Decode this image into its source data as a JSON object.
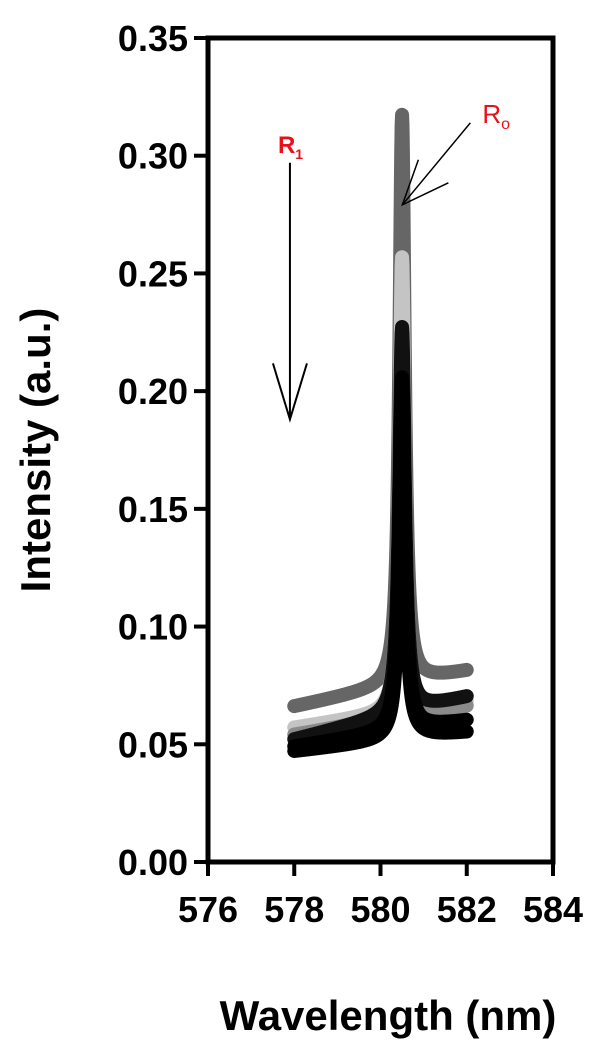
{
  "chart_data": {
    "type": "line",
    "title": "",
    "xlabel": "Wavelength (nm)",
    "ylabel": "Intensity (a.u.)",
    "xlim": [
      576,
      584
    ],
    "ylim": [
      0.0,
      0.35
    ],
    "x_ticks": [
      "576",
      "578",
      "580",
      "582",
      "584"
    ],
    "y_ticks": [
      "0.00",
      "0.05",
      "0.10",
      "0.15",
      "0.20",
      "0.25",
      "0.30",
      "0.35"
    ],
    "grid": false,
    "legend": "none",
    "peak_center": 580.5,
    "x_range": [
      578,
      582
    ],
    "series": [
      {
        "color": "#666666",
        "baseline": 0.066,
        "baseline_end": 0.081,
        "peak": 0.308,
        "width": 0.075
      },
      {
        "color": "#c4c4c4",
        "baseline": 0.057,
        "baseline_end": 0.068,
        "peak": 0.25,
        "width": 0.072
      },
      {
        "color": "#8a8a8a",
        "baseline": 0.054,
        "baseline_end": 0.066,
        "peak": 0.207,
        "width": 0.078
      },
      {
        "color": "#111111",
        "baseline": 0.052,
        "baseline_end": 0.07,
        "peak": 0.216,
        "width": 0.08
      },
      {
        "color": "#000000",
        "baseline": 0.049,
        "baseline_end": 0.06,
        "peak": 0.199,
        "width": 0.082
      },
      {
        "color": "#000000",
        "baseline": 0.047,
        "baseline_end": 0.055,
        "peak": 0.182,
        "width": 0.085
      }
    ],
    "annotations": [
      {
        "id": "r1",
        "label": "R",
        "sub": "1",
        "arrow": "down",
        "at_x": 577.9,
        "y_from": 0.297,
        "y_to": 0.188
      },
      {
        "id": "r0",
        "label": "R",
        "sub": "o",
        "arrow": "to-peak",
        "at_x": 580.6,
        "y_at": 0.28
      }
    ]
  }
}
